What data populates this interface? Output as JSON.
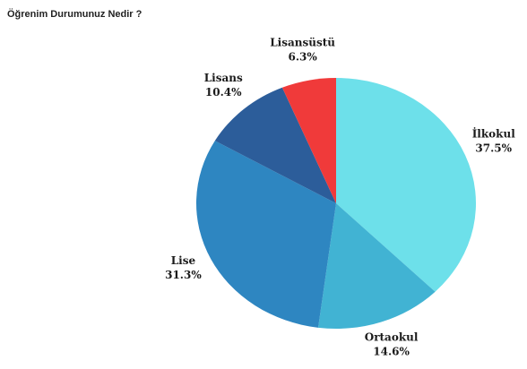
{
  "chart_data": {
    "type": "pie",
    "title": "Öğrenim Durumunuz Nedir ?",
    "categories": [
      "İlkokul",
      "Ortaokul",
      "Lise",
      "Lisans",
      "Lisansüstü"
    ],
    "values": [
      37.5,
      14.6,
      31.3,
      10.4,
      6.3
    ],
    "value_labels": [
      "37.5%",
      "14.6%",
      "31.3%",
      "10.4%",
      "6.3%"
    ],
    "colors": [
      "#6de0ea",
      "#41b3d3",
      "#2e86c1",
      "#2c5d9a",
      "#f03a3a"
    ]
  }
}
